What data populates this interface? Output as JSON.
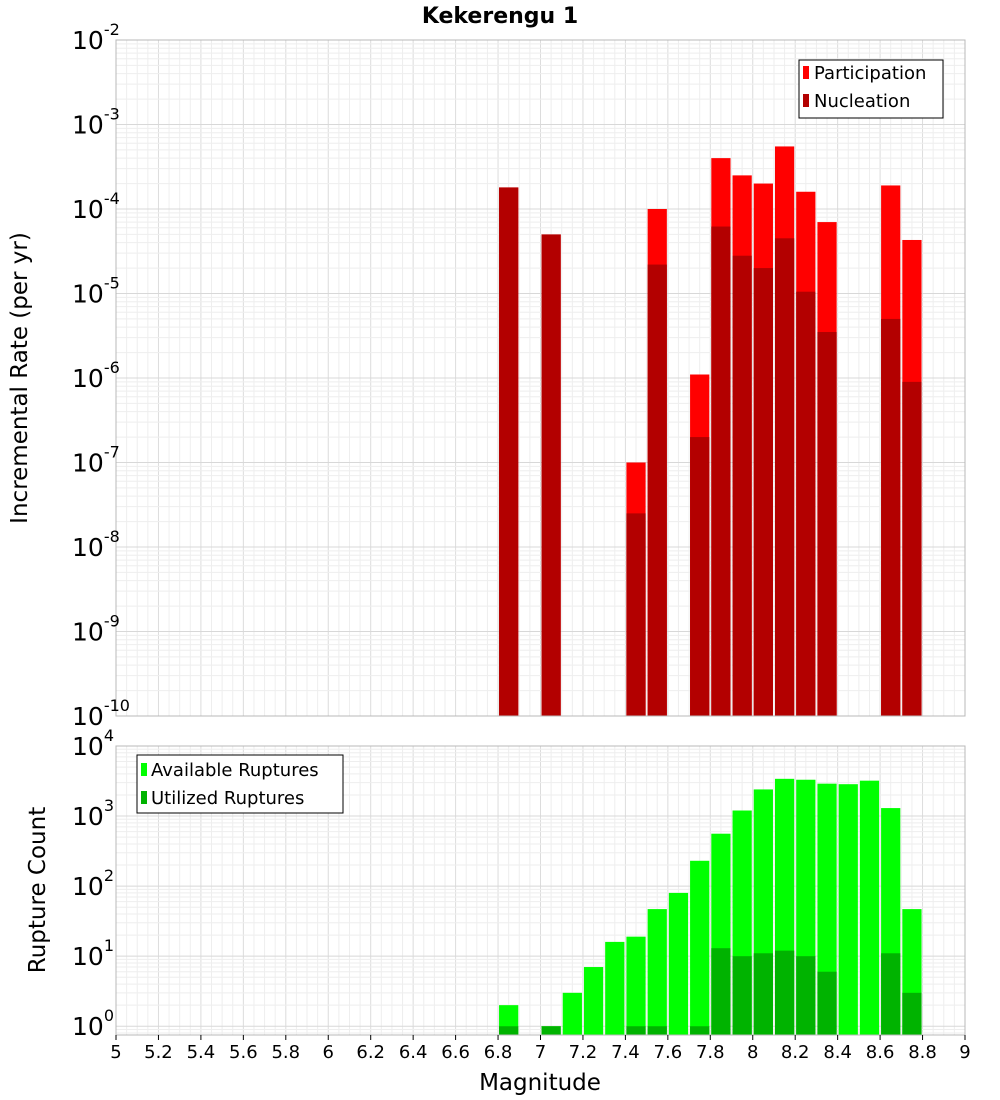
{
  "chart_data": [
    {
      "type": "bar",
      "scale": "log",
      "title": "Kekerengu 1",
      "ylabel": "Incremental Rate (per yr)",
      "xlim": [
        5,
        9
      ],
      "ylim": [
        1e-10,
        0.01
      ],
      "grid": true,
      "legend_position": "top-right",
      "bar_width": 0.1,
      "series": [
        {
          "name": "Participation",
          "color": "#ff0000",
          "points": [
            {
              "x": 6.85,
              "y": 0.00018
            },
            {
              "x": 7.05,
              "y": 5e-05
            },
            {
              "x": 7.45,
              "y": 1e-07
            },
            {
              "x": 7.55,
              "y": 0.0001
            },
            {
              "x": 7.75,
              "y": 1.1e-06
            },
            {
              "x": 7.85,
              "y": 0.0004
            },
            {
              "x": 7.95,
              "y": 0.00025
            },
            {
              "x": 8.05,
              "y": 0.0002
            },
            {
              "x": 8.15,
              "y": 0.00055
            },
            {
              "x": 8.25,
              "y": 0.00016
            },
            {
              "x": 8.35,
              "y": 7e-05
            },
            {
              "x": 8.65,
              "y": 0.00019
            },
            {
              "x": 8.75,
              "y": 4.3e-05
            }
          ]
        },
        {
          "name": "Nucleation",
          "color": "#b30000",
          "points": [
            {
              "x": 6.85,
              "y": 0.00018
            },
            {
              "x": 7.05,
              "y": 5e-05
            },
            {
              "x": 7.45,
              "y": 2.5e-08
            },
            {
              "x": 7.55,
              "y": 2.2e-05
            },
            {
              "x": 7.75,
              "y": 2e-07
            },
            {
              "x": 7.85,
              "y": 6.2e-05
            },
            {
              "x": 7.95,
              "y": 2.8e-05
            },
            {
              "x": 8.05,
              "y": 2e-05
            },
            {
              "x": 8.15,
              "y": 4.5e-05
            },
            {
              "x": 8.25,
              "y": 1.05e-05
            },
            {
              "x": 8.35,
              "y": 3.5e-06
            },
            {
              "x": 8.65,
              "y": 5e-06
            },
            {
              "x": 8.75,
              "y": 9e-07
            }
          ]
        }
      ]
    },
    {
      "type": "bar",
      "scale": "log",
      "ylabel": "Rupture Count",
      "xlabel": "Magnitude",
      "xlim": [
        5,
        9
      ],
      "ylim": [
        0.75,
        10000
      ],
      "grid": true,
      "legend_position": "top-left",
      "bar_width": 0.1,
      "series": [
        {
          "name": "Available Ruptures",
          "color": "#00ff00",
          "points": [
            {
              "x": 6.85,
              "y": 2
            },
            {
              "x": 7.05,
              "y": 1
            },
            {
              "x": 7.15,
              "y": 3
            },
            {
              "x": 7.25,
              "y": 7
            },
            {
              "x": 7.35,
              "y": 16
            },
            {
              "x": 7.45,
              "y": 19
            },
            {
              "x": 7.55,
              "y": 47
            },
            {
              "x": 7.65,
              "y": 80
            },
            {
              "x": 7.75,
              "y": 230
            },
            {
              "x": 7.85,
              "y": 560
            },
            {
              "x": 7.95,
              "y": 1200
            },
            {
              "x": 8.05,
              "y": 2400
            },
            {
              "x": 8.15,
              "y": 3400
            },
            {
              "x": 8.25,
              "y": 3300
            },
            {
              "x": 8.35,
              "y": 2900
            },
            {
              "x": 8.45,
              "y": 2850
            },
            {
              "x": 8.55,
              "y": 3200
            },
            {
              "x": 8.65,
              "y": 1300
            },
            {
              "x": 8.75,
              "y": 47
            }
          ]
        },
        {
          "name": "Utilized Ruptures",
          "color": "#00b300",
          "points": [
            {
              "x": 6.85,
              "y": 1
            },
            {
              "x": 7.05,
              "y": 1
            },
            {
              "x": 7.45,
              "y": 1
            },
            {
              "x": 7.55,
              "y": 1
            },
            {
              "x": 7.75,
              "y": 1
            },
            {
              "x": 7.85,
              "y": 13
            },
            {
              "x": 7.95,
              "y": 10
            },
            {
              "x": 8.05,
              "y": 11
            },
            {
              "x": 8.15,
              "y": 12
            },
            {
              "x": 8.25,
              "y": 10
            },
            {
              "x": 8.35,
              "y": 6
            },
            {
              "x": 8.65,
              "y": 11
            },
            {
              "x": 8.75,
              "y": 3
            }
          ]
        }
      ]
    }
  ],
  "x_ticks": [
    "5",
    "5.2",
    "5.4",
    "5.6",
    "5.8",
    "6",
    "6.2",
    "6.4",
    "6.6",
    "6.8",
    "7",
    "7.2",
    "7.4",
    "7.6",
    "7.8",
    "8",
    "8.2",
    "8.4",
    "8.6",
    "8.8",
    "9"
  ],
  "top_y_exponents": [
    "-10",
    "-9",
    "-8",
    "-7",
    "-6",
    "-5",
    "-4",
    "-3",
    "-2"
  ],
  "bottom_y_exponents": [
    "0",
    "1",
    "2",
    "3",
    "4"
  ]
}
